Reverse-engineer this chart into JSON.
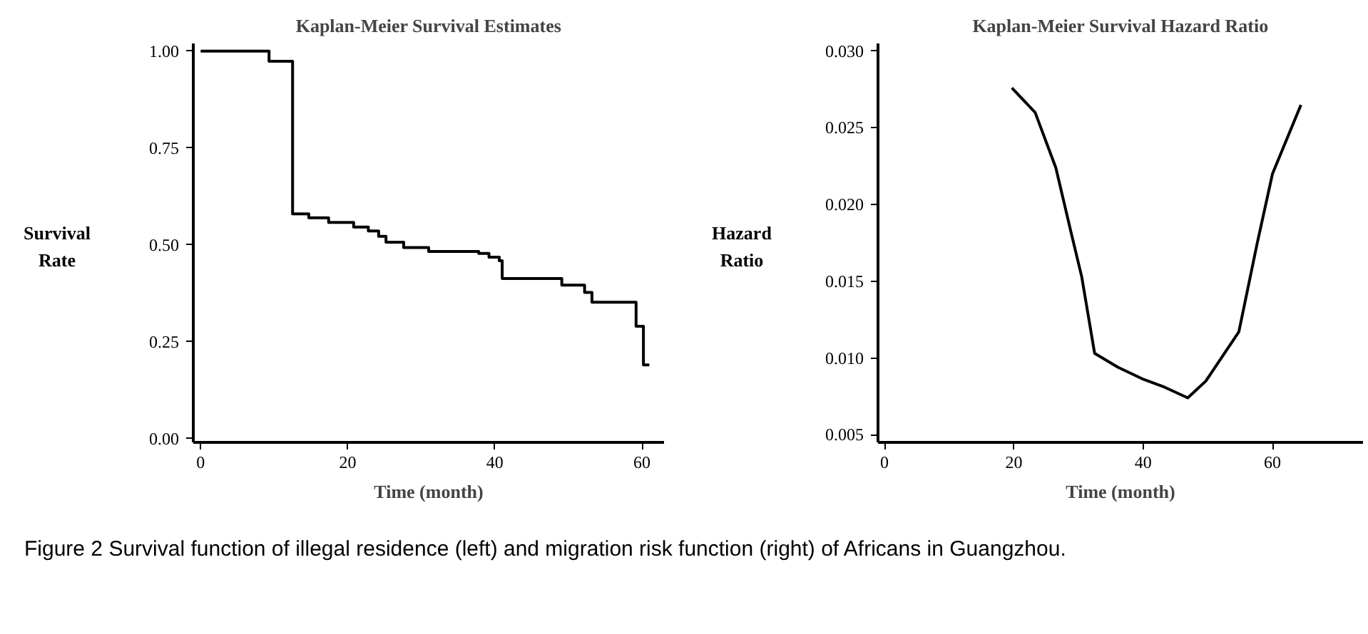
{
  "chart_data": [
    {
      "type": "step",
      "title": "Kaplan-Meier Survival Estimates",
      "xlabel": "Time (month)",
      "ylabel": "Survival Rate",
      "x": [
        0,
        9.3,
        12.5,
        14.7,
        17.4,
        20.8,
        22.8,
        24.2,
        25.2,
        27.6,
        31,
        37.8,
        39.2,
        40.6,
        41,
        49.1,
        52.2,
        53.2,
        59.2,
        60.2,
        61
      ],
      "series": [
        {
          "color": "#000000",
          "values": [
            1.0,
            0.974,
            0.58,
            0.57,
            0.558,
            0.546,
            0.536,
            0.522,
            0.507,
            0.493,
            0.483,
            0.478,
            0.468,
            0.459,
            0.413,
            0.396,
            0.377,
            0.352,
            0.29,
            0.19,
            0.19
          ]
        }
      ],
      "xlim": [
        -1,
        63
      ],
      "xticks": [
        0,
        20,
        40,
        60
      ],
      "ylim": [
        -0.01,
        1.02
      ],
      "yticks": [
        {
          "value": 0,
          "label": "0.00"
        },
        {
          "value": 0.25,
          "label": "0.25"
        },
        {
          "value": 0.5,
          "label": "0.50"
        },
        {
          "value": 0.75,
          "label": "0.75"
        },
        {
          "value": 1,
          "label": "1.00"
        }
      ],
      "grid": false
    },
    {
      "type": "line",
      "title": "Kaplan-Meier Survival Hazard Ratio",
      "xlabel": "Time (month)",
      "ylabel": "Hazard Ratio",
      "x": [
        19.7,
        23.3,
        26.5,
        28.9,
        30.5,
        32.5,
        36.1,
        40.1,
        43.3,
        46.9,
        49.7,
        54.8,
        57.6,
        60.0,
        64.4
      ],
      "series": [
        {
          "color": "#000000",
          "values": [
            0.0276,
            0.026,
            0.0224,
            0.0181,
            0.0153,
            0.0103,
            0.0094,
            0.0086,
            0.0081,
            0.0074,
            0.0085,
            0.0117,
            0.0174,
            0.022,
            0.0265
          ]
        }
      ],
      "xlim": [
        -1,
        74
      ],
      "xticks": [
        0,
        20,
        40,
        60
      ],
      "ylim": [
        0.0045,
        0.0305
      ],
      "yticks": [
        {
          "value": 0.005,
          "label": "0.005"
        },
        {
          "value": 0.01,
          "label": "0.010"
        },
        {
          "value": 0.015,
          "label": "0.015"
        },
        {
          "value": 0.02,
          "label": "0.020"
        },
        {
          "value": 0.025,
          "label": "0.025"
        },
        {
          "value": 0.03,
          "label": "0.030"
        }
      ],
      "grid": false,
      "annotations": [
        "Figure 2 Survival function of illegal residence (left) and migration risk function (right) of Africans in Guangzhou."
      ]
    }
  ]
}
